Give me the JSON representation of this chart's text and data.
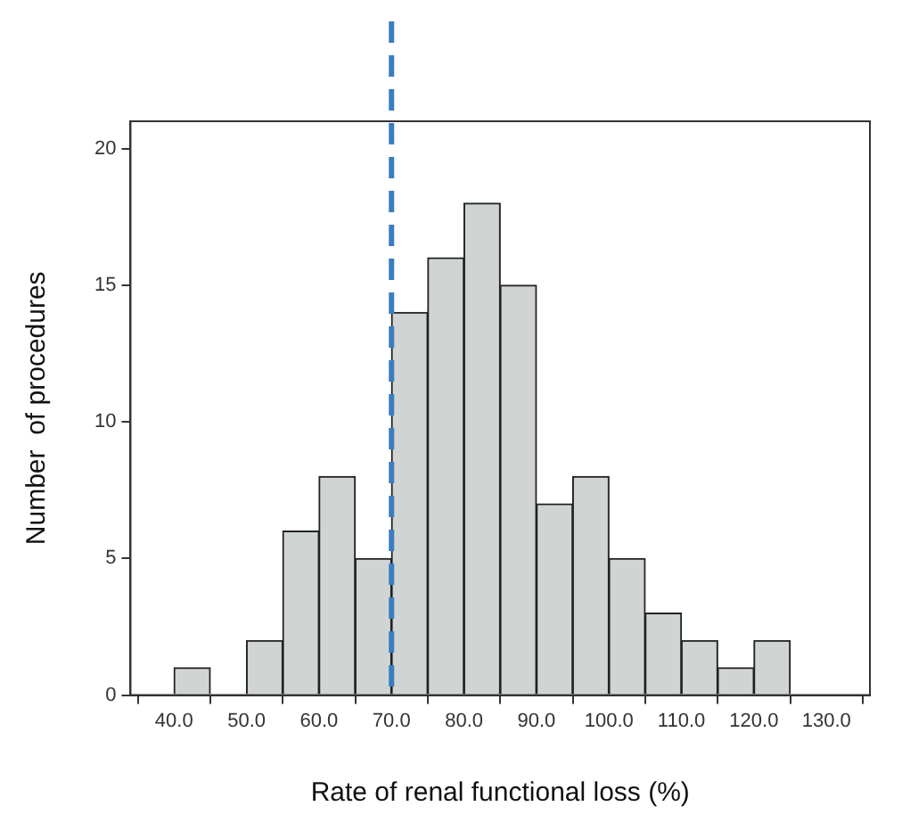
{
  "chart_data": {
    "type": "histogram",
    "xlabel": "Rate of renal functional loss (%)",
    "ylabel": "Number  of procedures",
    "bins": [
      40,
      45,
      50,
      55,
      60,
      65,
      70,
      75,
      80,
      85,
      90,
      95,
      100,
      105,
      110,
      115,
      120,
      125
    ],
    "values": [
      1,
      0,
      2,
      6,
      8,
      5,
      14,
      16,
      18,
      15,
      7,
      8,
      5,
      3,
      2,
      1,
      2
    ],
    "color": "#d0d5d4",
    "xlim": [
      34,
      136
    ],
    "xticks": [
      {
        "value": 40,
        "label": "40.0"
      },
      {
        "value": 50,
        "label": "50.0"
      },
      {
        "value": 60,
        "label": "60.0"
      },
      {
        "value": 70,
        "label": "70.0"
      },
      {
        "value": 80,
        "label": "80.0"
      },
      {
        "value": 90,
        "label": "90.0"
      },
      {
        "value": 100,
        "label": "100.0"
      },
      {
        "value": 110,
        "label": "110.0"
      },
      {
        "value": 120,
        "label": "120.0"
      },
      {
        "value": 130,
        "label": "130.0"
      }
    ],
    "ylim": [
      0,
      21
    ],
    "yticks": [
      0,
      5,
      10,
      15,
      20
    ],
    "ref_lines": [
      {
        "axis": "x",
        "value": 70,
        "color": "#3a7dc0",
        "line_style": "dashed"
      }
    ],
    "grid": false,
    "legend": false
  }
}
